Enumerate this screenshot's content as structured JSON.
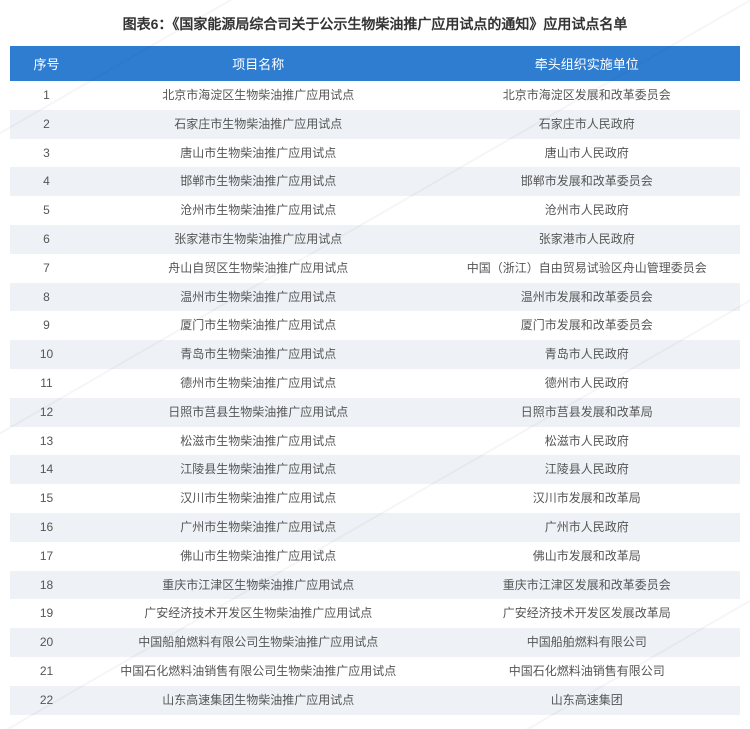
{
  "title": "图表6：《国家能源局综合司关于公示生物柴油推广应用试点的通知》应用试点名单",
  "table": {
    "header_bg": "#2f7dd1",
    "header_fg": "#ffffff",
    "row_odd_bg": "#ffffff",
    "row_even_bg": "#eef2f6",
    "font_color": "#555555",
    "columns": [
      {
        "key": "idx",
        "label": "序号",
        "width_pct": 10
      },
      {
        "key": "name",
        "label": "项目名称",
        "width_pct": 48
      },
      {
        "key": "org",
        "label": "牵头组织实施单位",
        "width_pct": 42
      }
    ],
    "rows": [
      {
        "idx": "1",
        "name": "北京市海淀区生物柴油推广应用试点",
        "org": "北京市海淀区发展和改革委员会"
      },
      {
        "idx": "2",
        "name": "石家庄市生物柴油推广应用试点",
        "org": "石家庄市人民政府"
      },
      {
        "idx": "3",
        "name": "唐山市生物柴油推广应用试点",
        "org": "唐山市人民政府"
      },
      {
        "idx": "4",
        "name": "邯郸市生物柴油推广应用试点",
        "org": "邯郸市发展和改革委员会"
      },
      {
        "idx": "5",
        "name": "沧州市生物柴油推广应用试点",
        "org": "沧州市人民政府"
      },
      {
        "idx": "6",
        "name": "张家港市生物柴油推广应用试点",
        "org": "张家港市人民政府"
      },
      {
        "idx": "7",
        "name": "舟山自贸区生物柴油推广应用试点",
        "org": "中国（浙江）自由贸易试验区舟山管理委员会"
      },
      {
        "idx": "8",
        "name": "温州市生物柴油推广应用试点",
        "org": "温州市发展和改革委员会"
      },
      {
        "idx": "9",
        "name": "厦门市生物柴油推广应用试点",
        "org": "厦门市发展和改革委员会"
      },
      {
        "idx": "10",
        "name": "青岛市生物柴油推广应用试点",
        "org": "青岛市人民政府"
      },
      {
        "idx": "11",
        "name": "德州市生物柴油推广应用试点",
        "org": "德州市人民政府"
      },
      {
        "idx": "12",
        "name": "日照市莒县生物柴油推广应用试点",
        "org": "日照市莒县发展和改革局"
      },
      {
        "idx": "13",
        "name": "松滋市生物柴油推广应用试点",
        "org": "松滋市人民政府"
      },
      {
        "idx": "14",
        "name": "江陵县生物柴油推广应用试点",
        "org": "江陵县人民政府"
      },
      {
        "idx": "15",
        "name": "汉川市生物柴油推广应用试点",
        "org": "汉川市发展和改革局"
      },
      {
        "idx": "16",
        "name": "广州市生物柴油推广应用试点",
        "org": "广州市人民政府"
      },
      {
        "idx": "17",
        "name": "佛山市生物柴油推广应用试点",
        "org": "佛山市发展和改革局"
      },
      {
        "idx": "18",
        "name": "重庆市江津区生物柴油推广应用试点",
        "org": "重庆市江津区发展和改革委员会"
      },
      {
        "idx": "19",
        "name": "广安经济技术开发区生物柴油推广应用试点",
        "org": "广安经济技术开发区发展改革局"
      },
      {
        "idx": "20",
        "name": "中国船舶燃料有限公司生物柴油推广应用试点",
        "org": "中国船舶燃料有限公司"
      },
      {
        "idx": "21",
        "name": "中国石化燃料油销售有限公司生物柴油推广应用试点",
        "org": "中国石化燃料油销售有限公司"
      },
      {
        "idx": "22",
        "name": "山东高速集团生物柴油推广应用试点",
        "org": "山东高速集团"
      }
    ]
  }
}
